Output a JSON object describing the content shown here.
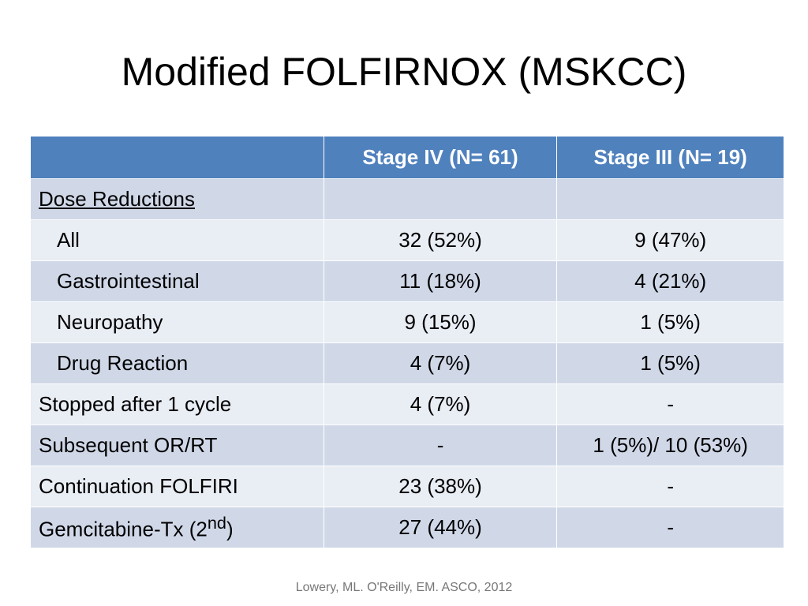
{
  "title": "Modified FOLFIRNOX (MSKCC)",
  "table": {
    "header": [
      "",
      "Stage IV (N= 61)",
      "Stage III (N= 19)"
    ],
    "rows": [
      [
        "Dose Reductions",
        "",
        ""
      ],
      [
        "All",
        "32 (52%)",
        "9 (47%)"
      ],
      [
        "Gastrointestinal",
        "11 (18%)",
        "4 (21%)"
      ],
      [
        "Neuropathy",
        "9 (15%)",
        "1 (5%)"
      ],
      [
        "Drug Reaction",
        "4 (7%)",
        "1 (5%)"
      ],
      [
        "Stopped after 1 cycle",
        "4 (7%)",
        "-"
      ],
      [
        "Subsequent OR/RT",
        "-",
        "1 (5%)/ 10 (53%)"
      ],
      [
        "Continuation FOLFIRI",
        "23 (38%)",
        "-"
      ],
      [
        {
          "text": "Gemcitabine-Tx (2",
          "sup": "nd",
          "after": ")"
        },
        "27 (44%)",
        "-"
      ]
    ]
  },
  "footer": "Lowery, ML. O'Reilly, EM. ASCO, 2012"
}
